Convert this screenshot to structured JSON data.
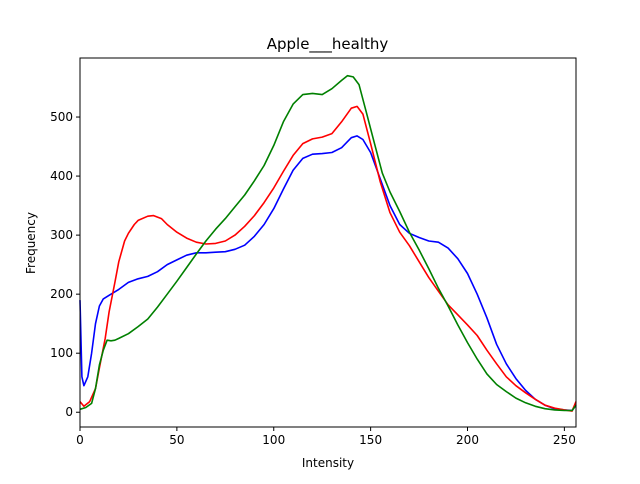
{
  "chart_data": {
    "type": "line",
    "title": "Apple___healthy",
    "xlabel": "Intensity",
    "ylabel": "Frequency",
    "xlim": [
      0,
      256
    ],
    "ylim": [
      -25,
      600
    ],
    "grid": false,
    "legend": "none",
    "x_ticks": [
      0,
      50,
      100,
      150,
      200,
      250
    ],
    "y_ticks": [
      0,
      100,
      200,
      300,
      400,
      500
    ],
    "series": [
      {
        "color": "#0000ff",
        "points": [
          [
            0,
            190
          ],
          [
            1,
            60
          ],
          [
            2,
            45
          ],
          [
            4,
            60
          ],
          [
            6,
            100
          ],
          [
            8,
            150
          ],
          [
            10,
            180
          ],
          [
            12,
            192
          ],
          [
            15,
            198
          ],
          [
            20,
            208
          ],
          [
            25,
            220
          ],
          [
            30,
            226
          ],
          [
            35,
            230
          ],
          [
            40,
            238
          ],
          [
            45,
            250
          ],
          [
            50,
            258
          ],
          [
            55,
            266
          ],
          [
            60,
            270
          ],
          [
            65,
            270
          ],
          [
            70,
            271
          ],
          [
            75,
            272
          ],
          [
            80,
            276
          ],
          [
            85,
            283
          ],
          [
            90,
            298
          ],
          [
            95,
            318
          ],
          [
            100,
            345
          ],
          [
            105,
            378
          ],
          [
            110,
            410
          ],
          [
            115,
            430
          ],
          [
            120,
            437
          ],
          [
            125,
            438
          ],
          [
            130,
            440
          ],
          [
            135,
            448
          ],
          [
            140,
            465
          ],
          [
            143,
            468
          ],
          [
            146,
            462
          ],
          [
            150,
            440
          ],
          [
            155,
            395
          ],
          [
            160,
            350
          ],
          [
            165,
            318
          ],
          [
            170,
            303
          ],
          [
            175,
            296
          ],
          [
            180,
            290
          ],
          [
            185,
            288
          ],
          [
            190,
            278
          ],
          [
            195,
            260
          ],
          [
            200,
            235
          ],
          [
            205,
            200
          ],
          [
            210,
            160
          ],
          [
            215,
            115
          ],
          [
            220,
            82
          ],
          [
            225,
            57
          ],
          [
            230,
            37
          ],
          [
            235,
            22
          ],
          [
            240,
            12
          ],
          [
            245,
            6
          ],
          [
            250,
            4
          ],
          [
            254,
            3
          ],
          [
            256,
            12
          ]
        ]
      },
      {
        "color": "#ff0000",
        "points": [
          [
            0,
            18
          ],
          [
            2,
            10
          ],
          [
            5,
            18
          ],
          [
            8,
            40
          ],
          [
            10,
            75
          ],
          [
            13,
            125
          ],
          [
            15,
            170
          ],
          [
            18,
            220
          ],
          [
            20,
            255
          ],
          [
            23,
            290
          ],
          [
            25,
            303
          ],
          [
            28,
            318
          ],
          [
            30,
            325
          ],
          [
            35,
            332
          ],
          [
            38,
            333
          ],
          [
            42,
            328
          ],
          [
            45,
            318
          ],
          [
            50,
            305
          ],
          [
            55,
            295
          ],
          [
            60,
            288
          ],
          [
            65,
            285
          ],
          [
            70,
            286
          ],
          [
            75,
            290
          ],
          [
            80,
            300
          ],
          [
            85,
            315
          ],
          [
            90,
            333
          ],
          [
            95,
            355
          ],
          [
            100,
            380
          ],
          [
            105,
            408
          ],
          [
            110,
            435
          ],
          [
            115,
            455
          ],
          [
            120,
            463
          ],
          [
            125,
            466
          ],
          [
            130,
            472
          ],
          [
            135,
            492
          ],
          [
            140,
            515
          ],
          [
            143,
            518
          ],
          [
            146,
            505
          ],
          [
            150,
            455
          ],
          [
            155,
            390
          ],
          [
            160,
            338
          ],
          [
            165,
            305
          ],
          [
            170,
            282
          ],
          [
            175,
            255
          ],
          [
            180,
            228
          ],
          [
            185,
            205
          ],
          [
            190,
            182
          ],
          [
            195,
            165
          ],
          [
            200,
            148
          ],
          [
            205,
            130
          ],
          [
            210,
            105
          ],
          [
            215,
            82
          ],
          [
            220,
            60
          ],
          [
            225,
            45
          ],
          [
            230,
            33
          ],
          [
            235,
            22
          ],
          [
            240,
            12
          ],
          [
            245,
            7
          ],
          [
            250,
            4
          ],
          [
            254,
            2
          ],
          [
            256,
            18
          ]
        ]
      },
      {
        "color": "#008000",
        "points": [
          [
            0,
            5
          ],
          [
            3,
            8
          ],
          [
            6,
            15
          ],
          [
            8,
            40
          ],
          [
            10,
            80
          ],
          [
            12,
            105
          ],
          [
            14,
            122
          ],
          [
            16,
            121
          ],
          [
            18,
            122
          ],
          [
            20,
            125
          ],
          [
            25,
            133
          ],
          [
            30,
            145
          ],
          [
            35,
            158
          ],
          [
            40,
            178
          ],
          [
            45,
            200
          ],
          [
            50,
            222
          ],
          [
            55,
            245
          ],
          [
            60,
            268
          ],
          [
            65,
            290
          ],
          [
            70,
            310
          ],
          [
            75,
            328
          ],
          [
            80,
            348
          ],
          [
            85,
            368
          ],
          [
            90,
            392
          ],
          [
            95,
            418
          ],
          [
            100,
            452
          ],
          [
            105,
            492
          ],
          [
            110,
            522
          ],
          [
            115,
            538
          ],
          [
            120,
            540
          ],
          [
            125,
            538
          ],
          [
            130,
            548
          ],
          [
            135,
            562
          ],
          [
            138,
            570
          ],
          [
            141,
            568
          ],
          [
            144,
            555
          ],
          [
            148,
            505
          ],
          [
            152,
            455
          ],
          [
            156,
            405
          ],
          [
            160,
            373
          ],
          [
            165,
            340
          ],
          [
            170,
            305
          ],
          [
            175,
            275
          ],
          [
            180,
            243
          ],
          [
            185,
            210
          ],
          [
            190,
            180
          ],
          [
            195,
            148
          ],
          [
            200,
            118
          ],
          [
            205,
            90
          ],
          [
            210,
            65
          ],
          [
            215,
            47
          ],
          [
            220,
            35
          ],
          [
            225,
            24
          ],
          [
            230,
            16
          ],
          [
            235,
            10
          ],
          [
            240,
            6
          ],
          [
            245,
            4
          ],
          [
            250,
            3
          ],
          [
            254,
            3
          ],
          [
            256,
            12
          ]
        ]
      }
    ]
  }
}
